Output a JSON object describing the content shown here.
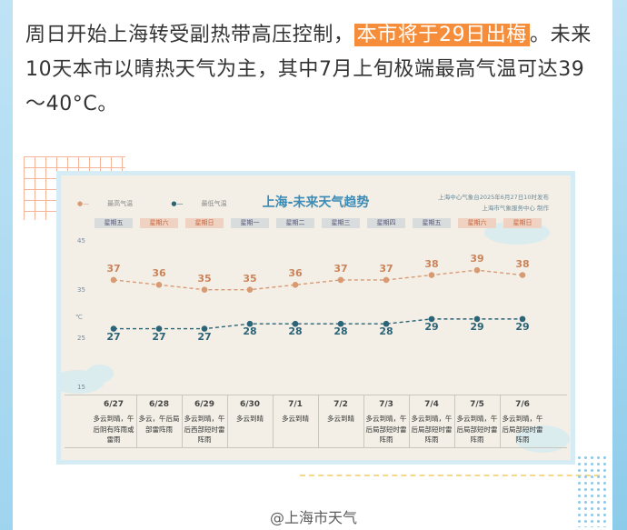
{
  "paragraph": {
    "part1": "周日开始上海转受副热带高压控制，",
    "highlight": "本市将于29日出梅",
    "part2": "。未来10天本市以晴热天气为主，其中7月上旬极端最高气温可达39～40°C。"
  },
  "chart": {
    "title": "上海-未来天气趋势",
    "legend_high": "最高气温",
    "legend_low": "最低气温",
    "publisher_line1": "上海中心气象台2025年6月27日10时发布",
    "publisher_line2": "上海市气象服务中心 制作",
    "unit": "℃",
    "yticks": [
      "45",
      "35",
      "25",
      "15"
    ]
  },
  "chart_data": {
    "type": "line",
    "title": "上海-未来天气趋势",
    "categories": [
      "6/27",
      "6/28",
      "6/29",
      "6/30",
      "7/1",
      "7/2",
      "7/3",
      "7/4",
      "7/5",
      "7/6"
    ],
    "weekdays": [
      "星期五",
      "星期六",
      "星期日",
      "星期一",
      "星期二",
      "星期三",
      "星期四",
      "星期五",
      "星期六",
      "星期日"
    ],
    "series": [
      {
        "name": "最高气温",
        "values": [
          37,
          36,
          35,
          35,
          36,
          37,
          37,
          38,
          39,
          38
        ],
        "color": "#d89a73"
      },
      {
        "name": "最低气温",
        "values": [
          27,
          27,
          27,
          28,
          28,
          28,
          28,
          29,
          29,
          29
        ],
        "color": "#2b6377"
      }
    ],
    "weather": [
      "多云到晴，午后阴有阵雨或雷雨",
      "多云，午后局部雷阵雨",
      "多云到晴，午后西部短时雷阵雨",
      "多云到晴",
      "多云到晴",
      "多云到晴",
      "多云到晴，午后局部短时雷阵雨",
      "多云到晴，午后局部短时雷阵雨",
      "多云到晴，午后局部短时雷阵雨",
      "多云到晴，午后局部短时雷阵雨"
    ],
    "ylabel": "℃",
    "ylim": [
      15,
      45
    ]
  },
  "watermark": "@上海市天气"
}
